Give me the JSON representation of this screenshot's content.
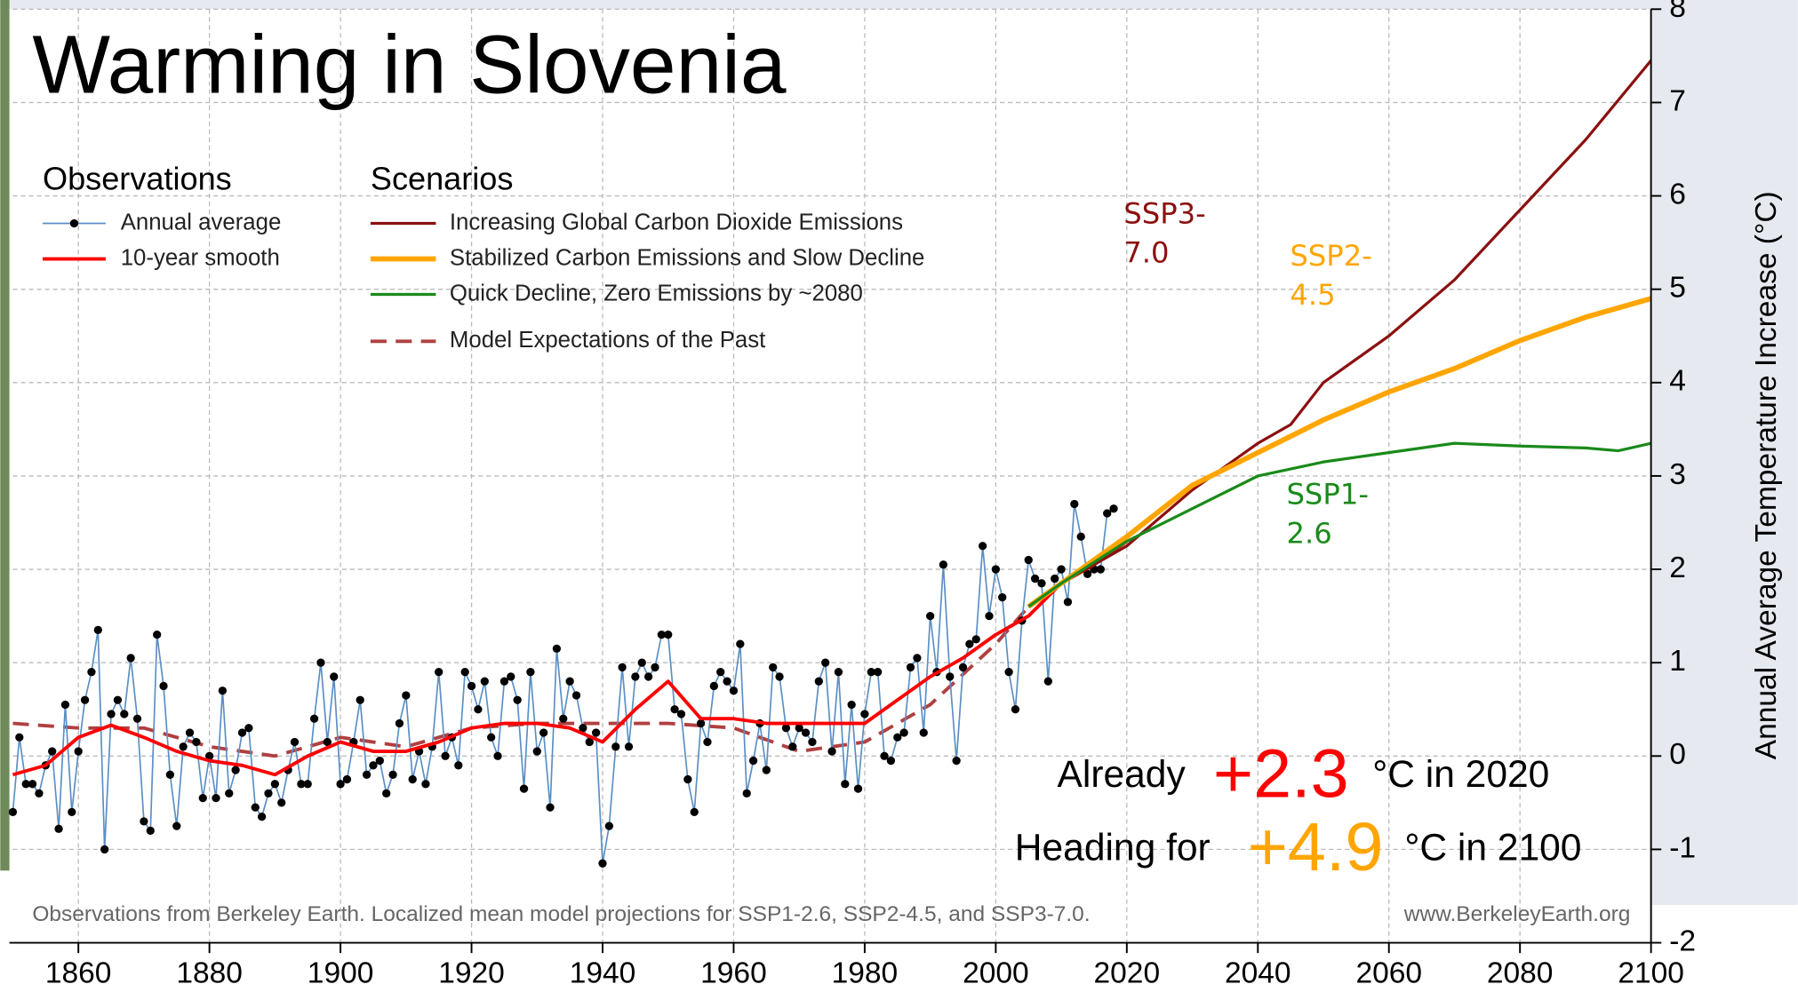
{
  "chart_data": {
    "type": "line",
    "title": "Warming in Slovenia",
    "y_label": "Annual Average Temperature Increase (°C)",
    "legend_headings": [
      "Observations",
      "Scenarios"
    ],
    "xlim": [
      1850,
      2100
    ],
    "xticks": [
      1860,
      1880,
      1900,
      1920,
      1940,
      1960,
      1980,
      2000,
      2020,
      2040,
      2060,
      2080,
      2100
    ],
    "ylim": [
      -2,
      8
    ],
    "yticks": [
      -2,
      -1,
      0,
      1,
      2,
      3,
      4,
      5,
      6,
      7,
      8
    ],
    "grid": true,
    "series": [
      {
        "name": "Annual average",
        "color": "#5b8fc4",
        "marker": true,
        "x": [
          1850,
          1851,
          1852,
          1853,
          1854,
          1855,
          1856,
          1857,
          1858,
          1859,
          1860,
          1861,
          1862,
          1863,
          1864,
          1865,
          1866,
          1867,
          1868,
          1869,
          1870,
          1871,
          1872,
          1873,
          1874,
          1875,
          1876,
          1877,
          1878,
          1879,
          1880,
          1881,
          1882,
          1883,
          1884,
          1885,
          1886,
          1887,
          1888,
          1889,
          1890,
          1891,
          1892,
          1893,
          1894,
          1895,
          1896,
          1897,
          1898,
          1899,
          1900,
          1901,
          1902,
          1903,
          1904,
          1905,
          1906,
          1907,
          1908,
          1909,
          1910,
          1911,
          1912,
          1913,
          1914,
          1915,
          1916,
          1917,
          1918,
          1919,
          1920,
          1921,
          1922,
          1923,
          1924,
          1925,
          1926,
          1927,
          1928,
          1929,
          1930,
          1931,
          1932,
          1933,
          1934,
          1935,
          1936,
          1937,
          1938,
          1939,
          1940,
          1941,
          1942,
          1943,
          1944,
          1945,
          1946,
          1947,
          1948,
          1949,
          1950,
          1951,
          1952,
          1953,
          1954,
          1955,
          1956,
          1957,
          1958,
          1959,
          1960,
          1961,
          1962,
          1963,
          1964,
          1965,
          1966,
          1967,
          1968,
          1969,
          1970,
          1971,
          1972,
          1973,
          1974,
          1975,
          1976,
          1977,
          1978,
          1979,
          1980,
          1981,
          1982,
          1983,
          1984,
          1985,
          1986,
          1987,
          1988,
          1989,
          1990,
          1991,
          1992,
          1993,
          1994,
          1995,
          1996,
          1997,
          1998,
          1999,
          2000,
          2001,
          2002,
          2003,
          2004,
          2005,
          2006,
          2007,
          2008,
          2009,
          2010,
          2011,
          2012,
          2013,
          2014,
          2015,
          2016,
          2017,
          2018
        ],
        "values": [
          -0.6,
          0.2,
          -0.3,
          -0.3,
          -0.4,
          -0.1,
          0.05,
          -0.78,
          0.55,
          -0.6,
          0.05,
          0.6,
          0.9,
          1.35,
          -1.0,
          0.45,
          0.6,
          0.45,
          1.05,
          0.4,
          -0.7,
          -0.8,
          1.3,
          0.75,
          -0.2,
          -0.75,
          0.1,
          0.25,
          0.15,
          -0.45,
          0.0,
          -0.45,
          0.7,
          -0.4,
          -0.15,
          0.25,
          0.3,
          -0.55,
          -0.65,
          -0.4,
          -0.3,
          -0.5,
          -0.15,
          0.15,
          -0.3,
          -0.3,
          0.4,
          1.0,
          0.15,
          0.85,
          -0.3,
          -0.25,
          0.15,
          0.6,
          -0.2,
          -0.1,
          -0.05,
          -0.4,
          -0.2,
          0.35,
          0.65,
          -0.25,
          0.05,
          -0.3,
          0.1,
          0.9,
          0.0,
          0.2,
          -0.1,
          0.9,
          0.75,
          0.5,
          0.8,
          0.2,
          0.0,
          0.8,
          0.85,
          0.6,
          -0.35,
          0.9,
          0.05,
          0.25,
          -0.55,
          1.15,
          0.4,
          0.8,
          0.65,
          0.3,
          0.15,
          0.25,
          -1.15,
          -0.75,
          0.1,
          0.95,
          0.1,
          0.85,
          1.0,
          0.85,
          0.95,
          1.3,
          1.3,
          0.5,
          0.45,
          -0.25,
          -0.6,
          0.35,
          0.15,
          0.75,
          0.9,
          0.8,
          0.7,
          1.2,
          -0.4,
          -0.05,
          0.35,
          -0.15,
          0.95,
          0.85,
          0.3,
          0.1,
          0.3,
          0.25,
          0.15,
          0.8,
          1.0,
          0.05,
          0.9,
          -0.3,
          0.55,
          -0.35,
          0.45,
          0.9,
          0.9,
          0.0,
          -0.05,
          0.2,
          0.25,
          0.95,
          1.05,
          0.25,
          1.5,
          0.9,
          2.05,
          0.85,
          -0.05,
          0.95,
          1.2,
          1.25,
          2.25,
          1.5,
          2.0,
          1.7,
          0.9,
          0.5,
          1.45,
          2.1,
          1.9,
          1.85,
          0.8,
          1.9,
          2.0,
          1.65,
          2.7,
          2.35,
          1.95,
          2.0,
          2.0,
          2.6,
          2.65
        ]
      },
      {
        "name": "10-year smooth",
        "color": "#ff0000",
        "x": [
          1850,
          1855,
          1860,
          1865,
          1870,
          1875,
          1880,
          1885,
          1890,
          1895,
          1900,
          1905,
          1910,
          1915,
          1920,
          1925,
          1930,
          1935,
          1940,
          1945,
          1950,
          1955,
          1960,
          1965,
          1970,
          1975,
          1980,
          1985,
          1990,
          1995,
          2000,
          2005,
          2010,
          2015,
          2020
        ],
        "values": [
          -0.2,
          -0.1,
          0.2,
          0.33,
          0.2,
          0.05,
          -0.05,
          -0.1,
          -0.2,
          0.0,
          0.15,
          0.05,
          0.05,
          0.15,
          0.3,
          0.35,
          0.35,
          0.3,
          0.15,
          0.5,
          0.8,
          0.4,
          0.4,
          0.35,
          0.35,
          0.35,
          0.35,
          0.6,
          0.85,
          1.05,
          1.3,
          1.5,
          1.85,
          2.05,
          2.3
        ]
      },
      {
        "name": "Increasing Global Carbon Dioxide Emissions",
        "color": "#8b1010",
        "x": [
          2005,
          2010,
          2020,
          2030,
          2040,
          2045,
          2050,
          2060,
          2070,
          2080,
          2090,
          2100
        ],
        "values": [
          1.6,
          1.85,
          2.25,
          2.85,
          3.35,
          3.55,
          4.0,
          4.5,
          5.1,
          5.85,
          6.6,
          7.45
        ]
      },
      {
        "name": "Stabilized Carbon Emissions and Slow Decline",
        "color": "#ffa500",
        "x": [
          2005,
          2010,
          2020,
          2030,
          2040,
          2050,
          2060,
          2070,
          2080,
          2090,
          2100
        ],
        "values": [
          1.6,
          1.85,
          2.35,
          2.9,
          3.25,
          3.6,
          3.9,
          4.15,
          4.45,
          4.7,
          4.9
        ]
      },
      {
        "name": "Quick Decline, Zero Emissions by ~2080",
        "color": "#1a8a1a",
        "x": [
          2005,
          2010,
          2020,
          2030,
          2040,
          2050,
          2060,
          2070,
          2080,
          2090,
          2095,
          2100
        ],
        "values": [
          1.6,
          1.85,
          2.3,
          2.65,
          3.0,
          3.15,
          3.25,
          3.35,
          3.32,
          3.3,
          3.27,
          3.35
        ]
      },
      {
        "name": "Model Expectations of the Past",
        "color": "#b04040",
        "dash": true,
        "x": [
          1850,
          1860,
          1870,
          1880,
          1890,
          1900,
          1910,
          1920,
          1930,
          1940,
          1950,
          1960,
          1970,
          1980,
          1990,
          2000,
          2005
        ],
        "values": [
          0.35,
          0.3,
          0.3,
          0.1,
          0.0,
          0.2,
          0.1,
          0.3,
          0.35,
          0.35,
          0.35,
          0.3,
          0.05,
          0.15,
          0.55,
          1.2,
          1.6
        ]
      }
    ],
    "annotations": [
      {
        "lines": [
          "SSP3-",
          "7.0"
        ],
        "color": "#8b1010"
      },
      {
        "lines": [
          "SSP2-",
          "4.5"
        ],
        "color": "#ffa500"
      },
      {
        "lines": [
          "SSP1-",
          "2.6"
        ],
        "color": "#1a8a1a"
      }
    ],
    "callouts": [
      {
        "before": "Already",
        "value": "+2.3",
        "after": "°C in 2020",
        "color": "#ff0000"
      },
      {
        "before": "Heading for",
        "value": "+4.9",
        "after": "°C in 2100",
        "color": "#ffa500"
      }
    ],
    "footer": "Observations from Berkeley Earth. Localized mean model projections for SSP1-2.6, SSP2-4.5, and SSP3-7.0.",
    "source": "www.BerkeleyEarth.org"
  }
}
